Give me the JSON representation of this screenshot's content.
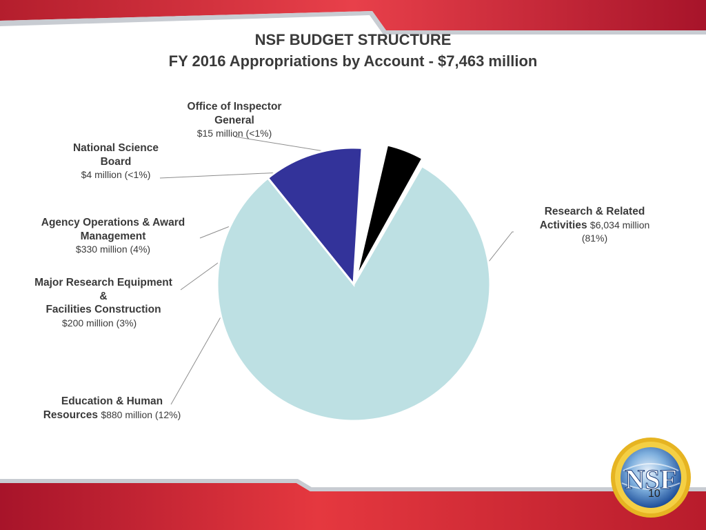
{
  "slide": {
    "title_line1": "NSF BUDGET STRUCTURE",
    "title_line2": "FY 2016 Appropriations by Account - $7,463 million",
    "page_number": "10",
    "logo_text": "NSF",
    "colors": {
      "accent_red": "#d7343f",
      "silver": "#c8ccd2"
    }
  },
  "labels": {
    "oig": {
      "name_line1": "Office of Inspector",
      "name_line2": "General",
      "amount": "$15 million (<1%)"
    },
    "nsb": {
      "name_line1": "National Science",
      "name_line2": "Board",
      "amount": "$4 million (<1%)"
    },
    "aoam": {
      "name_line1": "Agency Operations & Award",
      "name_line2": "Management",
      "amount": "$330 million (4%)"
    },
    "mrefc": {
      "name_line1": "Major Research Equipment",
      "name_line2": "&",
      "name_line3": "Facilities Construction",
      "amount": "$200 million (3%)"
    },
    "ehr": {
      "name_line1": "Education & Human",
      "name_line2": "Resources",
      "amount": "$880 million (12%)"
    },
    "rra": {
      "name_line1": "Research & Related",
      "name_line2": "Activities",
      "amount_inline": "$6,034 million",
      "amount_line3": "(81%)"
    }
  },
  "chart_data": {
    "type": "pie",
    "title": "FY 2016 Appropriations by Account - $7,463 million",
    "unit": "million",
    "slices": [
      {
        "label": "Research & Related Activities",
        "value": 6034,
        "percent": "81%",
        "color": "#bde0e3"
      },
      {
        "label": "Education & Human Resources",
        "value": 880,
        "percent": "12%",
        "color": "#33339a"
      },
      {
        "label": "Major Research Equipment & Facilities Construction",
        "value": 200,
        "percent": "3%",
        "color": "#ffffff"
      },
      {
        "label": "Agency Operations & Award Management",
        "value": 330,
        "percent": "4%",
        "color": "#000000"
      },
      {
        "label": "National Science Board",
        "value": 4,
        "percent": "<1%",
        "color": "#bde0e3"
      },
      {
        "label": "Office of Inspector General",
        "value": 15,
        "percent": "<1%",
        "color": "#bde0e3"
      }
    ],
    "legend": "none"
  }
}
